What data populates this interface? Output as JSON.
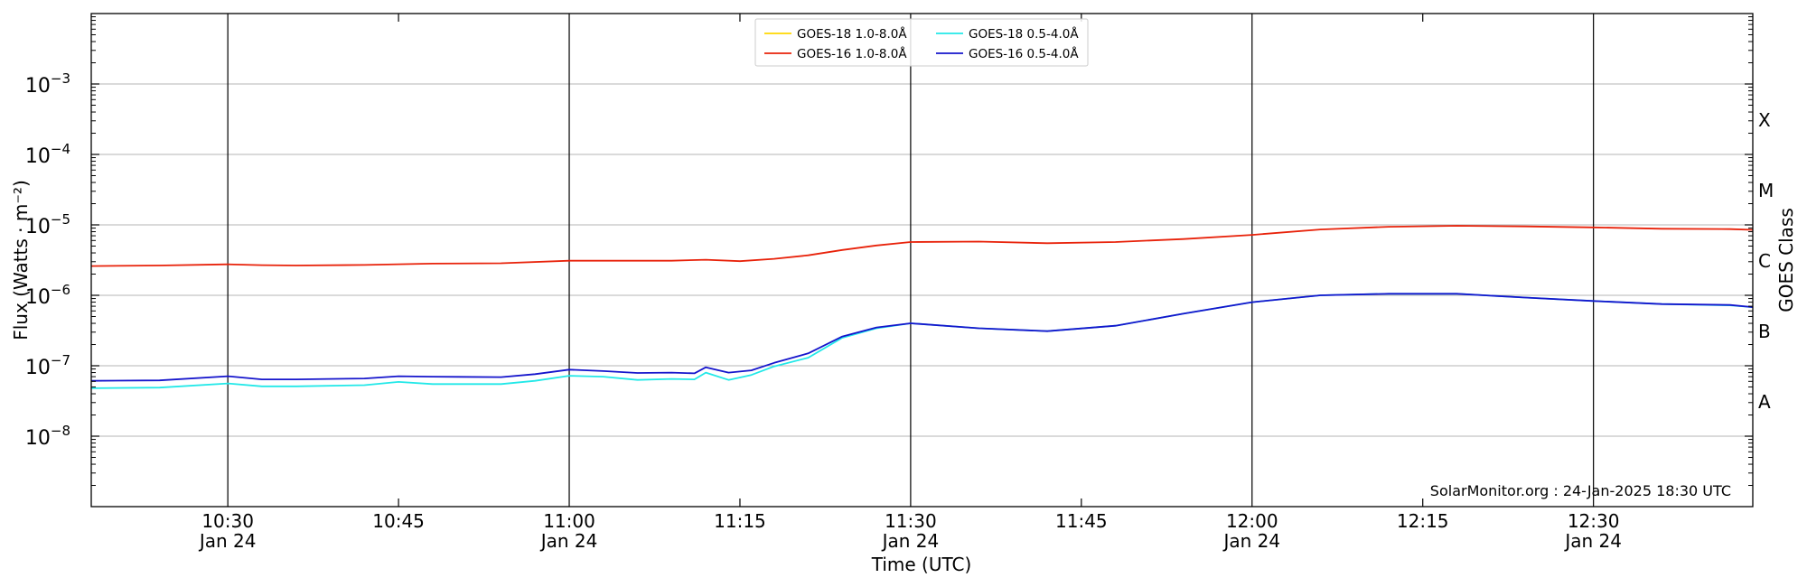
{
  "chart_data": {
    "type": "line",
    "title": "",
    "xlabel": "Time (UTC)",
    "ylabel": "Flux (Watts · m⁻²)",
    "y2label": "GOES Class",
    "yscale": "log",
    "ylim": [
      1e-09,
      0.01
    ],
    "xlim": [
      "10:18",
      "12:44"
    ],
    "grid": "horizontal at decades; vertical at half hours",
    "legend_position": "top-center",
    "credit": "SolarMonitor.org : 24-Jan-2025 18:30 UTC",
    "x_ticks": [
      {
        "time": "10:30",
        "line1": "10:30",
        "line2": "Jan 24",
        "major": true
      },
      {
        "time": "10:45",
        "line1": "10:45",
        "line2": "",
        "major": false
      },
      {
        "time": "11:00",
        "line1": "11:00",
        "line2": "Jan 24",
        "major": true
      },
      {
        "time": "11:15",
        "line1": "11:15",
        "line2": "",
        "major": false
      },
      {
        "time": "11:30",
        "line1": "11:30",
        "line2": "Jan 24",
        "major": true
      },
      {
        "time": "11:45",
        "line1": "11:45",
        "line2": "",
        "major": false
      },
      {
        "time": "12:00",
        "line1": "12:00",
        "line2": "Jan 24",
        "major": true
      },
      {
        "time": "12:15",
        "line1": "12:15",
        "line2": "",
        "major": false
      },
      {
        "time": "12:30",
        "line1": "12:30",
        "line2": "Jan 24",
        "major": true
      }
    ],
    "y_ticks": [
      {
        "exp": -8,
        "label": "10",
        "sup": "−8"
      },
      {
        "exp": -7,
        "label": "10",
        "sup": "−7"
      },
      {
        "exp": -6,
        "label": "10",
        "sup": "−6"
      },
      {
        "exp": -5,
        "label": "10",
        "sup": "−5"
      },
      {
        "exp": -4,
        "label": "10",
        "sup": "−4"
      },
      {
        "exp": -3,
        "label": "10",
        "sup": "−3"
      }
    ],
    "goes_classes": [
      {
        "label": "A",
        "exp": -7.5
      },
      {
        "label": "B",
        "exp": -6.5
      },
      {
        "label": "C",
        "exp": -5.5
      },
      {
        "label": "M",
        "exp": -4.5
      },
      {
        "label": "X",
        "exp": -3.5
      }
    ],
    "series": [
      {
        "name": "GOES-18 1.0-8.0Å",
        "color": "#ffd700",
        "x": [],
        "y": []
      },
      {
        "name": "GOES-16 1.0-8.0Å",
        "color": "#e8220a",
        "x": [
          "10:18",
          "10:24",
          "10:30",
          "10:33",
          "10:36",
          "10:42",
          "10:48",
          "10:54",
          "11:00",
          "11:06",
          "11:09",
          "11:12",
          "11:15",
          "11:18",
          "11:21",
          "11:24",
          "11:27",
          "11:30",
          "11:36",
          "11:42",
          "11:48",
          "11:54",
          "12:00",
          "12:06",
          "12:12",
          "12:18",
          "12:24",
          "12:30",
          "12:36",
          "12:42",
          "12:44"
        ],
        "y": [
          2.6e-06,
          2.65e-06,
          2.75e-06,
          2.68e-06,
          2.65e-06,
          2.7e-06,
          2.82e-06,
          2.85e-06,
          3.1e-06,
          3.1e-06,
          3.1e-06,
          3.2e-06,
          3.05e-06,
          3.3e-06,
          3.7e-06,
          4.4e-06,
          5.1e-06,
          5.7e-06,
          5.8e-06,
          5.5e-06,
          5.7e-06,
          6.3e-06,
          7.2e-06,
          8.6e-06,
          9.4e-06,
          9.7e-06,
          9.5e-06,
          9.2e-06,
          8.8e-06,
          8.7e-06,
          8.5e-06
        ]
      },
      {
        "name": "GOES-18 0.5-4.0Å",
        "color": "#22e8e8",
        "x": [
          "10:18",
          "10:24",
          "10:30",
          "10:33",
          "10:36",
          "10:42",
          "10:45",
          "10:48",
          "10:54",
          "10:57",
          "11:00",
          "11:03",
          "11:06",
          "11:09",
          "11:11",
          "11:12",
          "11:14",
          "11:16",
          "11:18",
          "11:21",
          "11:24",
          "11:27",
          "11:30",
          "11:36",
          "11:42",
          "11:48",
          "11:54",
          "12:00",
          "12:06",
          "12:12",
          "12:18",
          "12:24",
          "12:30",
          "12:36",
          "12:42",
          "12:44"
        ],
        "y": [
          4.8e-08,
          4.9e-08,
          5.6e-08,
          5.1e-08,
          5.1e-08,
          5.3e-08,
          5.9e-08,
          5.5e-08,
          5.5e-08,
          6.1e-08,
          7.2e-08,
          7e-08,
          6.3e-08,
          6.5e-08,
          6.4e-08,
          8e-08,
          6.3e-08,
          7.4e-08,
          9.8e-08,
          1.3e-07,
          2.5e-07,
          3.4e-07,
          4e-07,
          3.4e-07,
          3.1e-07,
          3.7e-07,
          5.5e-07,
          8e-07,
          1e-06,
          1.05e-06,
          1.05e-06,
          9.3e-07,
          8.3e-07,
          7.5e-07,
          7.2e-07,
          6.8e-07
        ]
      },
      {
        "name": "GOES-16 0.5-4.0Å",
        "color": "#1515cc",
        "x": [
          "10:18",
          "10:24",
          "10:30",
          "10:33",
          "10:36",
          "10:42",
          "10:45",
          "10:48",
          "10:54",
          "10:57",
          "11:00",
          "11:03",
          "11:06",
          "11:09",
          "11:11",
          "11:12",
          "11:14",
          "11:16",
          "11:18",
          "11:21",
          "11:24",
          "11:27",
          "11:30",
          "11:36",
          "11:42",
          "11:48",
          "11:54",
          "12:00",
          "12:06",
          "12:12",
          "12:18",
          "12:24",
          "12:30",
          "12:36",
          "12:42",
          "12:44"
        ],
        "y": [
          6.1e-08,
          6.2e-08,
          7.1e-08,
          6.4e-08,
          6.4e-08,
          6.6e-08,
          7.1e-08,
          7e-08,
          6.9e-08,
          7.6e-08,
          8.8e-08,
          8.4e-08,
          7.9e-08,
          8e-08,
          7.8e-08,
          9.5e-08,
          8e-08,
          8.6e-08,
          1.1e-07,
          1.5e-07,
          2.6e-07,
          3.5e-07,
          4e-07,
          3.4e-07,
          3.1e-07,
          3.7e-07,
          5.5e-07,
          8e-07,
          1e-06,
          1.05e-06,
          1.05e-06,
          9.3e-07,
          8.3e-07,
          7.5e-07,
          7.3e-07,
          6.8e-07
        ]
      }
    ]
  }
}
